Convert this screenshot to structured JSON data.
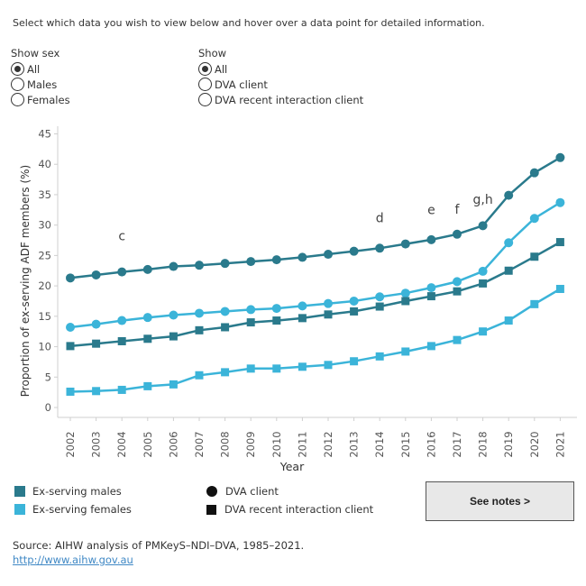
{
  "instructions": "Select which data you wish to view below and hover over a data point for detailed information.",
  "filters": {
    "sex": {
      "title": "Show sex",
      "options": [
        {
          "label": "All",
          "checked": true
        },
        {
          "label": "Males",
          "checked": false
        },
        {
          "label": "Females",
          "checked": false
        }
      ]
    },
    "show": {
      "title": "Show",
      "options": [
        {
          "label": "All",
          "checked": true
        },
        {
          "label": "DVA client",
          "checked": false
        },
        {
          "label": "DVA recent interaction client",
          "checked": false
        }
      ]
    }
  },
  "chart_data": {
    "type": "line",
    "ylabel": "Proportion of ex-serving ADF members (%)",
    "xlabel": "Year",
    "ylim": [
      0,
      45
    ],
    "yticks": [
      0,
      5,
      10,
      15,
      20,
      25,
      30,
      35,
      40,
      45
    ],
    "x": [
      "2002",
      "2003",
      "2004",
      "2005",
      "2006",
      "2007",
      "2008",
      "2009",
      "2010",
      "2011",
      "2012",
      "2013",
      "2014",
      "2015",
      "2016",
      "2017",
      "2018",
      "2019",
      "2020",
      "2021"
    ],
    "series": [
      {
        "name": "Ex-serving males",
        "marker": "DVA client",
        "color": "#2a7a8c",
        "values": [
          21.3,
          21.8,
          22.3,
          22.7,
          23.2,
          23.4,
          23.7,
          24.0,
          24.3,
          24.7,
          25.2,
          25.7,
          26.2,
          26.9,
          27.6,
          28.5,
          29.9,
          34.9,
          38.6,
          41.1
        ]
      },
      {
        "name": "Ex-serving females",
        "marker": "DVA client",
        "color": "#3bb4d9",
        "values": [
          13.2,
          13.7,
          14.3,
          14.8,
          15.2,
          15.5,
          15.8,
          16.1,
          16.3,
          16.7,
          17.1,
          17.5,
          18.2,
          18.8,
          19.7,
          20.7,
          22.4,
          27.1,
          31.1,
          33.7
        ]
      },
      {
        "name": "Ex-serving males",
        "marker": "DVA recent interaction client",
        "color": "#2a7a8c",
        "values": [
          10.1,
          10.5,
          10.9,
          11.3,
          11.7,
          12.7,
          13.2,
          14.0,
          14.3,
          14.7,
          15.3,
          15.8,
          16.6,
          17.5,
          18.3,
          19.1,
          20.4,
          22.5,
          24.8,
          27.2
        ]
      },
      {
        "name": "Ex-serving females",
        "marker": "DVA recent interaction client",
        "color": "#3bb4d9",
        "values": [
          2.6,
          2.7,
          2.9,
          3.5,
          3.8,
          5.3,
          5.8,
          6.4,
          6.4,
          6.7,
          7.0,
          7.6,
          8.4,
          9.2,
          10.1,
          11.1,
          12.5,
          14.3,
          17.0,
          19.5
        ]
      }
    ],
    "annotations": [
      {
        "text": "c",
        "x": "2004",
        "y": 27.5
      },
      {
        "text": "d",
        "x": "2014",
        "y": 30.5
      },
      {
        "text": "e",
        "x": "2016",
        "y": 31.8
      },
      {
        "text": "f",
        "x": "2017",
        "y": 31.9
      },
      {
        "text": "g,h",
        "x": "2018",
        "y": 33.5
      }
    ],
    "grid": false
  },
  "legend": {
    "colors": [
      {
        "label": "Ex-serving males",
        "color": "#2a7a8c"
      },
      {
        "label": "Ex-serving females",
        "color": "#3bb4d9"
      }
    ],
    "markers": [
      {
        "label": "DVA client",
        "shape": "circle"
      },
      {
        "label": "DVA recent interaction client",
        "shape": "square"
      }
    ]
  },
  "notes_button": "See notes >",
  "source": {
    "text": "Source: AIHW analysis of PMKeyS–NDI–DVA, 1985–2021.",
    "link": "http://www.aihw.gov.au"
  }
}
